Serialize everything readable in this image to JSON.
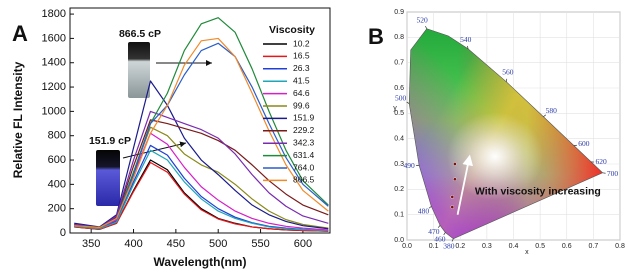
{
  "chart_data": [
    {
      "type": "line",
      "panel_label": "A",
      "x_label": "Wavelength(nm)",
      "y_label": "Relative FL Intensity",
      "legend_title": "Viscosity",
      "annotations": [
        "866.5 cP",
        "151.9 cP"
      ],
      "x": [
        330,
        360,
        380,
        400,
        420,
        440,
        460,
        480,
        500,
        520,
        540,
        560,
        580,
        600,
        630
      ],
      "xlim": [
        325,
        632
      ],
      "xticks": [
        350,
        400,
        450,
        500,
        550,
        600
      ],
      "ylim": [
        0,
        1850
      ],
      "yticks": [
        0,
        200,
        400,
        600,
        800,
        1000,
        1200,
        1400,
        1600,
        1800
      ],
      "grid": false,
      "series": [
        {
          "name": "10.2",
          "color": "#000000",
          "values": [
            50,
            30,
            80,
            350,
            600,
            520,
            330,
            200,
            120,
            80,
            50,
            35,
            25,
            20,
            15
          ]
        },
        {
          "name": "16.5",
          "color": "#e8161a",
          "values": [
            50,
            30,
            80,
            340,
            580,
            500,
            320,
            190,
            115,
            75,
            50,
            35,
            25,
            20,
            15
          ]
        },
        {
          "name": "26.3",
          "color": "#1f3fd6",
          "values": [
            60,
            35,
            100,
            420,
            720,
            640,
            450,
            300,
            200,
            130,
            85,
            55,
            40,
            30,
            20
          ]
        },
        {
          "name": "41.5",
          "color": "#1fa6b8",
          "values": [
            55,
            35,
            90,
            400,
            680,
            600,
            420,
            280,
            180,
            120,
            80,
            50,
            35,
            28,
            20
          ]
        },
        {
          "name": "64.6",
          "color": "#d61fc8",
          "values": [
            60,
            40,
            110,
            480,
            820,
            730,
            540,
            380,
            270,
            180,
            120,
            80,
            55,
            40,
            25
          ]
        },
        {
          "name": "99.6",
          "color": "#8a8a1a",
          "values": [
            60,
            40,
            120,
            500,
            870,
            800,
            650,
            560,
            500,
            400,
            280,
            180,
            110,
            70,
            40
          ]
        },
        {
          "name": "151.9",
          "color": "#1a1a8c",
          "values": [
            80,
            50,
            150,
            700,
            1250,
            1050,
            780,
            600,
            480,
            350,
            230,
            150,
            95,
            60,
            35
          ]
        },
        {
          "name": "229.2",
          "color": "#7a1a1a",
          "values": [
            70,
            45,
            130,
            550,
            930,
            900,
            860,
            820,
            760,
            680,
            560,
            430,
            320,
            230,
            150
          ]
        },
        {
          "name": "342.3",
          "color": "#7a2ab0",
          "values": [
            70,
            45,
            140,
            600,
            1000,
            950,
            900,
            850,
            780,
            650,
            480,
            330,
            220,
            140,
            80
          ]
        },
        {
          "name": "631.4",
          "color": "#1f8a3a",
          "values": [
            60,
            45,
            120,
            500,
            900,
            1150,
            1500,
            1720,
            1770,
            1650,
            1350,
            1000,
            680,
            430,
            230
          ]
        },
        {
          "name": "764.0",
          "color": "#2a5fc8",
          "values": [
            60,
            45,
            120,
            480,
            900,
            1050,
            1300,
            1500,
            1560,
            1450,
            1200,
            900,
            620,
            400,
            220
          ]
        },
        {
          "name": "866.5",
          "color": "#f08a2a",
          "values": [
            60,
            45,
            120,
            450,
            820,
            1050,
            1380,
            1580,
            1600,
            1450,
            1150,
            840,
            560,
            350,
            180
          ]
        }
      ]
    },
    {
      "type": "scatter",
      "panel_label": "B",
      "x_label": "x",
      "y_label": "y",
      "annotation": "With viscosity increasing",
      "x": [
        0.17,
        0.17,
        0.18,
        0.18
      ],
      "y": [
        0.13,
        0.17,
        0.24,
        0.3
      ],
      "color": "#7a1010",
      "xlim": [
        0,
        0.8
      ],
      "xticks": [
        {
          "value": 0,
          "label": "0.0"
        },
        0.1,
        0.2,
        0.3,
        0.4,
        0.5,
        0.6,
        0.7,
        0.8
      ],
      "ylim": [
        0,
        0.9
      ],
      "yticks": [
        {
          "value": 0,
          "label": "0.0"
        },
        0.1,
        0.2,
        0.3,
        0.4,
        0.5,
        0.6,
        0.7,
        0.8,
        0.9
      ],
      "grid": true,
      "spectral_locus": {
        "labels": [
          380,
          460,
          470,
          480,
          490,
          500,
          null,
          520,
          null,
          540,
          560,
          580,
          600,
          620,
          700
        ],
        "x": [
          0.1741,
          0.144,
          0.1241,
          0.0913,
          0.0454,
          0.0082,
          0.0139,
          0.0743,
          0.1547,
          0.2296,
          0.3731,
          0.5125,
          0.627,
          0.6915,
          0.7347
        ],
        "y": [
          0.005,
          0.0297,
          0.0578,
          0.1327,
          0.295,
          0.5384,
          0.7502,
          0.8338,
          0.8059,
          0.7543,
          0.6245,
          0.4866,
          0.3725,
          0.3083,
          0.2653
        ]
      }
    }
  ]
}
